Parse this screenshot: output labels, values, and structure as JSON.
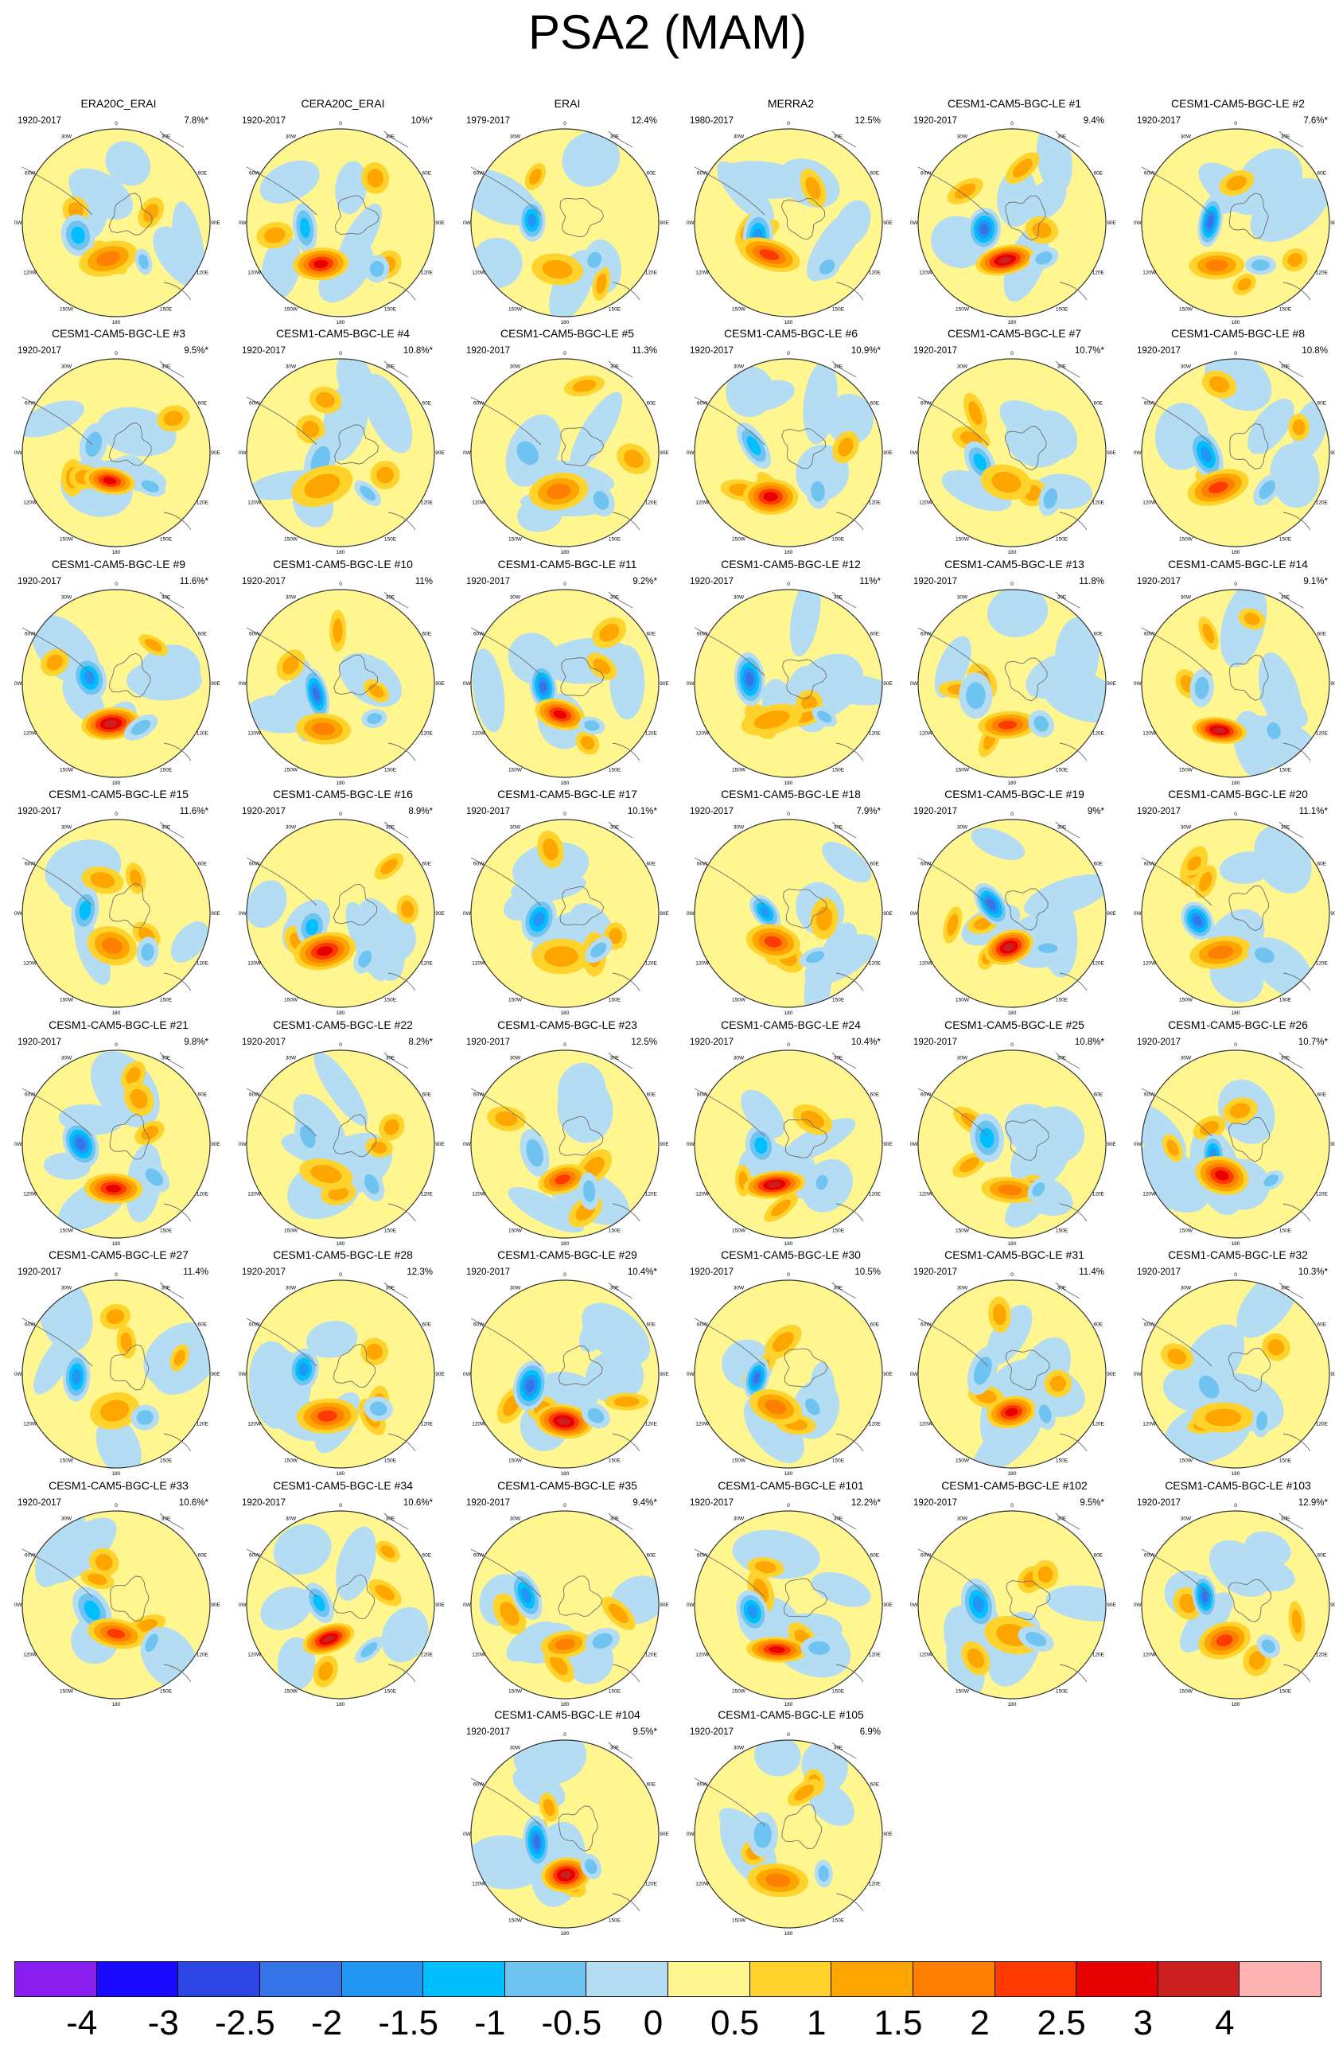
{
  "title": "PSA2 (MAM)",
  "colors": {
    "land_outline": "#6e6e6e",
    "frame": "#333333"
  },
  "map_labels": [
    "0",
    "30E",
    "60E",
    "90E",
    "120E",
    "150E",
    "180",
    "150W",
    "120W",
    "90W",
    "60W",
    "30W"
  ],
  "panels": [
    {
      "name": "ERA20C_ERAI",
      "period": "1920-2017",
      "pct": "7.8%*"
    },
    {
      "name": "CERA20C_ERAI",
      "period": "1920-2017",
      "pct": "10%*"
    },
    {
      "name": "ERAI",
      "period": "1979-2017",
      "pct": "12.4%"
    },
    {
      "name": "MERRA2",
      "period": "1980-2017",
      "pct": "12.5%"
    },
    {
      "name": "CESM1-CAM5-BGC-LE #1",
      "period": "1920-2017",
      "pct": "9.4%"
    },
    {
      "name": "CESM1-CAM5-BGC-LE #2",
      "period": "1920-2017",
      "pct": "7.6%*"
    },
    {
      "name": "CESM1-CAM5-BGC-LE #3",
      "period": "1920-2017",
      "pct": "9.5%*"
    },
    {
      "name": "CESM1-CAM5-BGC-LE #4",
      "period": "1920-2017",
      "pct": "10.8%*"
    },
    {
      "name": "CESM1-CAM5-BGC-LE #5",
      "period": "1920-2017",
      "pct": "11.3%"
    },
    {
      "name": "CESM1-CAM5-BGC-LE #6",
      "period": "1920-2017",
      "pct": "10.9%*"
    },
    {
      "name": "CESM1-CAM5-BGC-LE #7",
      "period": "1920-2017",
      "pct": "10.7%*"
    },
    {
      "name": "CESM1-CAM5-BGC-LE #8",
      "period": "1920-2017",
      "pct": "10.8%"
    },
    {
      "name": "CESM1-CAM5-BGC-LE #9",
      "period": "1920-2017",
      "pct": "11.6%*"
    },
    {
      "name": "CESM1-CAM5-BGC-LE #10",
      "period": "1920-2017",
      "pct": "11%"
    },
    {
      "name": "CESM1-CAM5-BGC-LE #11",
      "period": "1920-2017",
      "pct": "9.2%*"
    },
    {
      "name": "CESM1-CAM5-BGC-LE #12",
      "period": "1920-2017",
      "pct": "11%*"
    },
    {
      "name": "CESM1-CAM5-BGC-LE #13",
      "period": "1920-2017",
      "pct": "11.8%"
    },
    {
      "name": "CESM1-CAM5-BGC-LE #14",
      "period": "1920-2017",
      "pct": "9.1%*"
    },
    {
      "name": "CESM1-CAM5-BGC-LE #15",
      "period": "1920-2017",
      "pct": "11.6%*"
    },
    {
      "name": "CESM1-CAM5-BGC-LE #16",
      "period": "1920-2017",
      "pct": "8.9%*"
    },
    {
      "name": "CESM1-CAM5-BGC-LE #17",
      "period": "1920-2017",
      "pct": "10.1%*"
    },
    {
      "name": "CESM1-CAM5-BGC-LE #18",
      "period": "1920-2017",
      "pct": "7.9%*"
    },
    {
      "name": "CESM1-CAM5-BGC-LE #19",
      "period": "1920-2017",
      "pct": "9%*"
    },
    {
      "name": "CESM1-CAM5-BGC-LE #20",
      "period": "1920-2017",
      "pct": "11.1%*"
    },
    {
      "name": "CESM1-CAM5-BGC-LE #21",
      "period": "1920-2017",
      "pct": "9.8%*"
    },
    {
      "name": "CESM1-CAM5-BGC-LE #22",
      "period": "1920-2017",
      "pct": "8.2%*"
    },
    {
      "name": "CESM1-CAM5-BGC-LE #23",
      "period": "1920-2017",
      "pct": "12.5%"
    },
    {
      "name": "CESM1-CAM5-BGC-LE #24",
      "period": "1920-2017",
      "pct": "10.4%*"
    },
    {
      "name": "CESM1-CAM5-BGC-LE #25",
      "period": "1920-2017",
      "pct": "10.8%*"
    },
    {
      "name": "CESM1-CAM5-BGC-LE #26",
      "period": "1920-2017",
      "pct": "10.7%*"
    },
    {
      "name": "CESM1-CAM5-BGC-LE #27",
      "period": "1920-2017",
      "pct": "11.4%"
    },
    {
      "name": "CESM1-CAM5-BGC-LE #28",
      "period": "1920-2017",
      "pct": "12.3%"
    },
    {
      "name": "CESM1-CAM5-BGC-LE #29",
      "period": "1920-2017",
      "pct": "10.4%*"
    },
    {
      "name": "CESM1-CAM5-BGC-LE #30",
      "period": "1920-2017",
      "pct": "10.5%"
    },
    {
      "name": "CESM1-CAM5-BGC-LE #31",
      "period": "1920-2017",
      "pct": "11.4%"
    },
    {
      "name": "CESM1-CAM5-BGC-LE #32",
      "period": "1920-2017",
      "pct": "10.3%*"
    },
    {
      "name": "CESM1-CAM5-BGC-LE #33",
      "period": "1920-2017",
      "pct": "10.6%*"
    },
    {
      "name": "CESM1-CAM5-BGC-LE #34",
      "period": "1920-2017",
      "pct": "10.6%*"
    },
    {
      "name": "CESM1-CAM5-BGC-LE #35",
      "period": "1920-2017",
      "pct": "9.4%*"
    },
    {
      "name": "CESM1-CAM5-BGC-LE #101",
      "period": "1920-2017",
      "pct": "12.2%*"
    },
    {
      "name": "CESM1-CAM5-BGC-LE #102",
      "period": "1920-2017",
      "pct": "9.5%*"
    },
    {
      "name": "CESM1-CAM5-BGC-LE #103",
      "period": "1920-2017",
      "pct": "12.9%*"
    },
    {
      "name": "CESM1-CAM5-BGC-LE #104",
      "period": "1920-2017",
      "pct": "9.5%*"
    },
    {
      "name": "CESM1-CAM5-BGC-LE #105",
      "period": "1920-2017",
      "pct": "6.9%"
    }
  ],
  "colorbar": {
    "colors": [
      "#8a1ef0",
      "#1a0aff",
      "#2c46e6",
      "#3474e8",
      "#2196f3",
      "#00bfff",
      "#6fc3f0",
      "#b4dcf3",
      "#fff68f",
      "#ffd22c",
      "#ffa500",
      "#ff7f00",
      "#ff3a00",
      "#e60000",
      "#cc1f1f",
      "#ffb3b3"
    ],
    "labels": [
      "-4",
      "-3",
      "-2.5",
      "-2",
      "-1.5",
      "-1",
      "-0.5",
      "0",
      "0.5",
      "1",
      "1.5",
      "2",
      "2.5",
      "3",
      "4"
    ]
  }
}
